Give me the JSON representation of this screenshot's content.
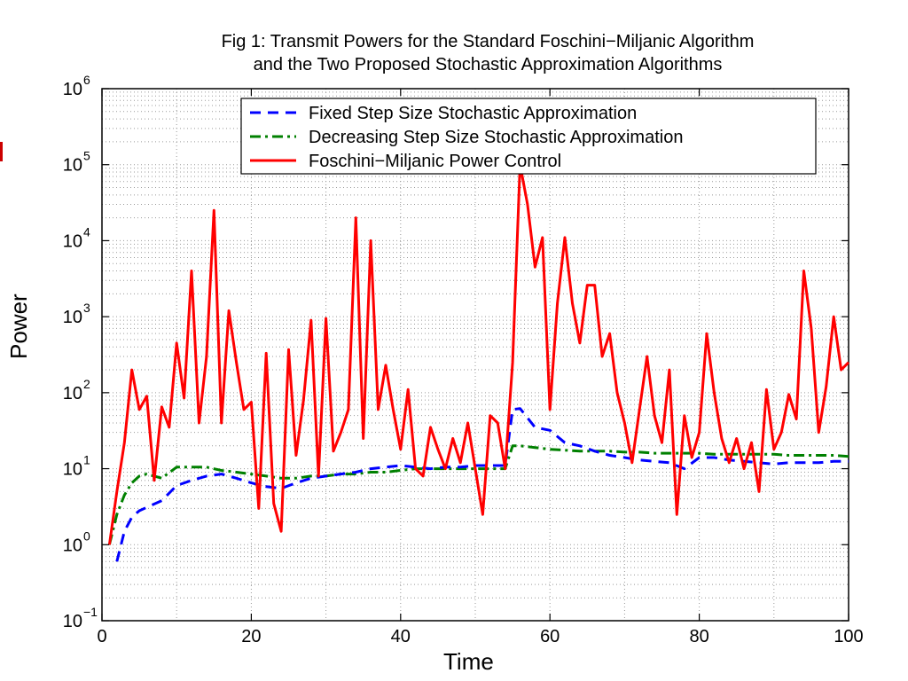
{
  "chart_data": {
    "type": "line",
    "title": "Fig 1: Transmit Powers for the Standard Foschini−Miljanic Algorithm",
    "subtitle": "and the Two Proposed Stochastic Approximation Algorithms",
    "xlabel": "Time",
    "ylabel": "Power",
    "xlim": [
      0,
      100
    ],
    "ylim": [
      0.1,
      1000000
    ],
    "yscale": "log",
    "grid": true,
    "legend_position": "top-right",
    "x_ticks": [
      0,
      20,
      40,
      60,
      80,
      100
    ],
    "y_ticks": [
      {
        "value": 0.1,
        "base": "10",
        "exp": "−1"
      },
      {
        "value": 1,
        "base": "10",
        "exp": "0"
      },
      {
        "value": 10,
        "base": "10",
        "exp": "1"
      },
      {
        "value": 100,
        "base": "10",
        "exp": "2"
      },
      {
        "value": 1000,
        "base": "10",
        "exp": "3"
      },
      {
        "value": 10000,
        "base": "10",
        "exp": "4"
      },
      {
        "value": 100000,
        "base": "10",
        "exp": "5"
      },
      {
        "value": 1000000,
        "base": "10",
        "exp": "6"
      }
    ],
    "series": [
      {
        "name": "Fixed Step Size Stochastic Approximation",
        "color": "#0000ff",
        "style": "dashed",
        "x": [
          2,
          3,
          4,
          5,
          6,
          8,
          10,
          12,
          14,
          16,
          18,
          20,
          22,
          24,
          26,
          28,
          30,
          32,
          34,
          36,
          38,
          40,
          42,
          44,
          46,
          48,
          50,
          52,
          54,
          55,
          56,
          58,
          60,
          62,
          64,
          66,
          68,
          70,
          72,
          74,
          76,
          78,
          80,
          82,
          84,
          86,
          88,
          90,
          92,
          94,
          96,
          98,
          100
        ],
        "y": [
          0.6,
          1.5,
          2.3,
          2.8,
          3.1,
          3.8,
          6.0,
          7.0,
          8.0,
          8.5,
          7.5,
          6.5,
          5.8,
          5.5,
          6.5,
          7.5,
          8.0,
          8.5,
          9.0,
          10.0,
          10.5,
          11.0,
          10.5,
          10.0,
          10.5,
          10.5,
          11.0,
          11.0,
          11.0,
          60.0,
          62.0,
          35.0,
          32.0,
          22.0,
          20.0,
          17.0,
          15.0,
          14.0,
          13.0,
          12.5,
          12.0,
          10.0,
          14.0,
          14.0,
          13.0,
          12.5,
          12.0,
          11.5,
          12.0,
          12.0,
          12.0,
          12.5,
          12.5
        ]
      },
      {
        "name": "Decreasing Step Size Stochastic Approximation",
        "color": "#008000",
        "style": "dashdot",
        "x": [
          1,
          2,
          3,
          4,
          5,
          6,
          8,
          10,
          12,
          14,
          16,
          18,
          20,
          22,
          24,
          26,
          28,
          30,
          32,
          34,
          36,
          38,
          40,
          42,
          44,
          46,
          48,
          50,
          52,
          54,
          55,
          56,
          58,
          60,
          62,
          64,
          66,
          68,
          70,
          72,
          74,
          76,
          78,
          80,
          82,
          84,
          86,
          88,
          90,
          92,
          94,
          96,
          98,
          100
        ],
        "y": [
          1.0,
          2.5,
          4.5,
          6.5,
          8.0,
          8.5,
          7.5,
          10.5,
          10.5,
          10.5,
          9.5,
          9.0,
          8.5,
          8.0,
          7.5,
          7.5,
          8.0,
          8.0,
          8.5,
          8.5,
          9.0,
          9.0,
          9.5,
          10.0,
          10.0,
          10.0,
          10.0,
          10.0,
          10.0,
          10.0,
          20.0,
          20.0,
          19.0,
          18.0,
          17.5,
          17.0,
          17.0,
          17.0,
          16.5,
          16.5,
          16.0,
          16.0,
          16.0,
          16.0,
          15.5,
          15.5,
          15.5,
          15.5,
          15.5,
          15.0,
          15.0,
          15.0,
          15.0,
          14.5
        ]
      },
      {
        "name": "Foschini−Miljanic Power Control",
        "color": "#ff0000",
        "style": "solid",
        "x": [
          1,
          2,
          3,
          4,
          5,
          6,
          7,
          8,
          9,
          10,
          11,
          12,
          13,
          14,
          15,
          16,
          17,
          18,
          19,
          20,
          21,
          22,
          23,
          24,
          25,
          26,
          27,
          28,
          29,
          30,
          31,
          32,
          33,
          34,
          35,
          36,
          37,
          38,
          39,
          40,
          41,
          42,
          43,
          44,
          45,
          46,
          47,
          48,
          49,
          50,
          51,
          52,
          53,
          54,
          55,
          56,
          57,
          58,
          59,
          60,
          61,
          62,
          63,
          64,
          65,
          66,
          67,
          68,
          69,
          70,
          71,
          72,
          73,
          74,
          75,
          76,
          77,
          78,
          79,
          80,
          81,
          82,
          83,
          84,
          85,
          86,
          87,
          88,
          89,
          90,
          91,
          92,
          93,
          94,
          95,
          96,
          97,
          98,
          99,
          100
        ],
        "y": [
          1.0,
          5.0,
          22.0,
          200.0,
          60.0,
          90.0,
          7.0,
          65.0,
          35.0,
          450.0,
          85.0,
          4000.0,
          40.0,
          300.0,
          25000.0,
          40.0,
          1200.0,
          250.0,
          60.0,
          75.0,
          3.0,
          330.0,
          3.5,
          1.5,
          370.0,
          15.0,
          80.0,
          900.0,
          8.0,
          950.0,
          17.0,
          30.0,
          60.0,
          20000.0,
          25.0,
          10000.0,
          60.0,
          230.0,
          60.0,
          18.0,
          110.0,
          10.0,
          8.0,
          35.0,
          18.0,
          10.0,
          25.0,
          12.0,
          40.0,
          10.0,
          2.5,
          50.0,
          40.0,
          10.0,
          250.0,
          100000.0,
          30000.0,
          4500.0,
          11000.0,
          60.0,
          1500.0,
          11000.0,
          1500.0,
          450.0,
          2600.0,
          2600.0,
          300.0,
          600.0,
          100.0,
          40.0,
          12.0,
          60.0,
          300.0,
          50.0,
          22.0,
          200.0,
          2.5,
          50.0,
          14.0,
          30.0,
          600.0,
          100.0,
          25.0,
          12.0,
          25.0,
          10.0,
          22.0,
          5.0,
          110.0,
          18.0,
          30.0,
          95.0,
          45.0,
          4000.0,
          700.0,
          30.0,
          120.0,
          1000.0,
          200.0,
          250.0
        ]
      }
    ]
  }
}
